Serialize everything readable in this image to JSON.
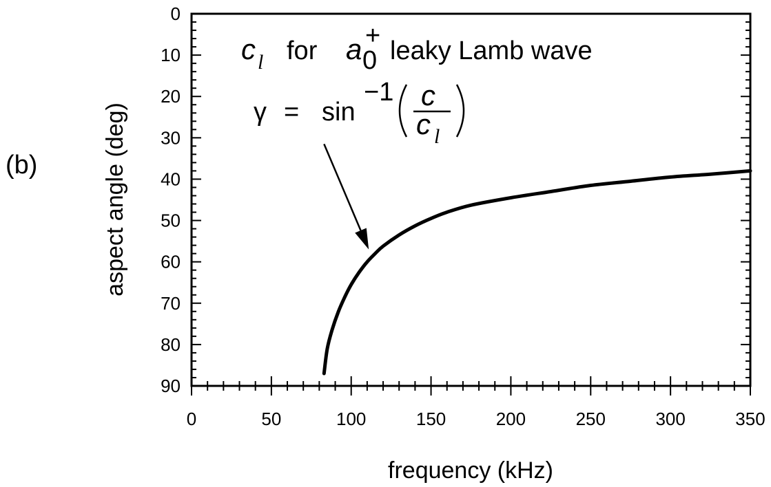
{
  "panel_label": "(b)",
  "annotation": {
    "line1_symbol": "c",
    "line1_symbol_sub": "l",
    "line1_word_for": "for",
    "line1_wave_symbol": "a",
    "line1_wave_sub": "0",
    "line1_wave_sup": "+",
    "line1_tail": "leaky Lamb wave",
    "line2_gamma": "γ",
    "line2_equals": "=",
    "line2_func": "sin",
    "line2_exp": "−1",
    "line2_numerator": "c",
    "line2_denominator": "c",
    "line2_denominator_sub": "l"
  },
  "chart_data": {
    "type": "line",
    "title": "",
    "xlabel": "frequency (kHz)",
    "ylabel": "aspect angle (deg)",
    "xlim": [
      0,
      350
    ],
    "ylim": [
      90,
      0
    ],
    "y_inverted": true,
    "xticks": [
      0,
      50,
      100,
      150,
      200,
      250,
      300,
      350
    ],
    "yticks": [
      0,
      10,
      20,
      30,
      40,
      50,
      60,
      70,
      80,
      90
    ],
    "grid": false,
    "series": [
      {
        "x": [
          83,
          85,
          88,
          92,
          96,
          100,
          105,
          110,
          115,
          120,
          130,
          140,
          150,
          160,
          175,
          200,
          225,
          250,
          275,
          300,
          325,
          350
        ],
        "y": [
          87,
          81,
          76.5,
          72,
          68.5,
          65.5,
          62.5,
          60,
          58,
          56.2,
          53.5,
          51.3,
          49.5,
          48,
          46.3,
          44.5,
          43,
          41.5,
          40.5,
          39.5,
          38.8,
          38
        ]
      }
    ],
    "arrow": {
      "from": [
        83,
        31.5
      ],
      "to": [
        111,
        57
      ]
    }
  }
}
